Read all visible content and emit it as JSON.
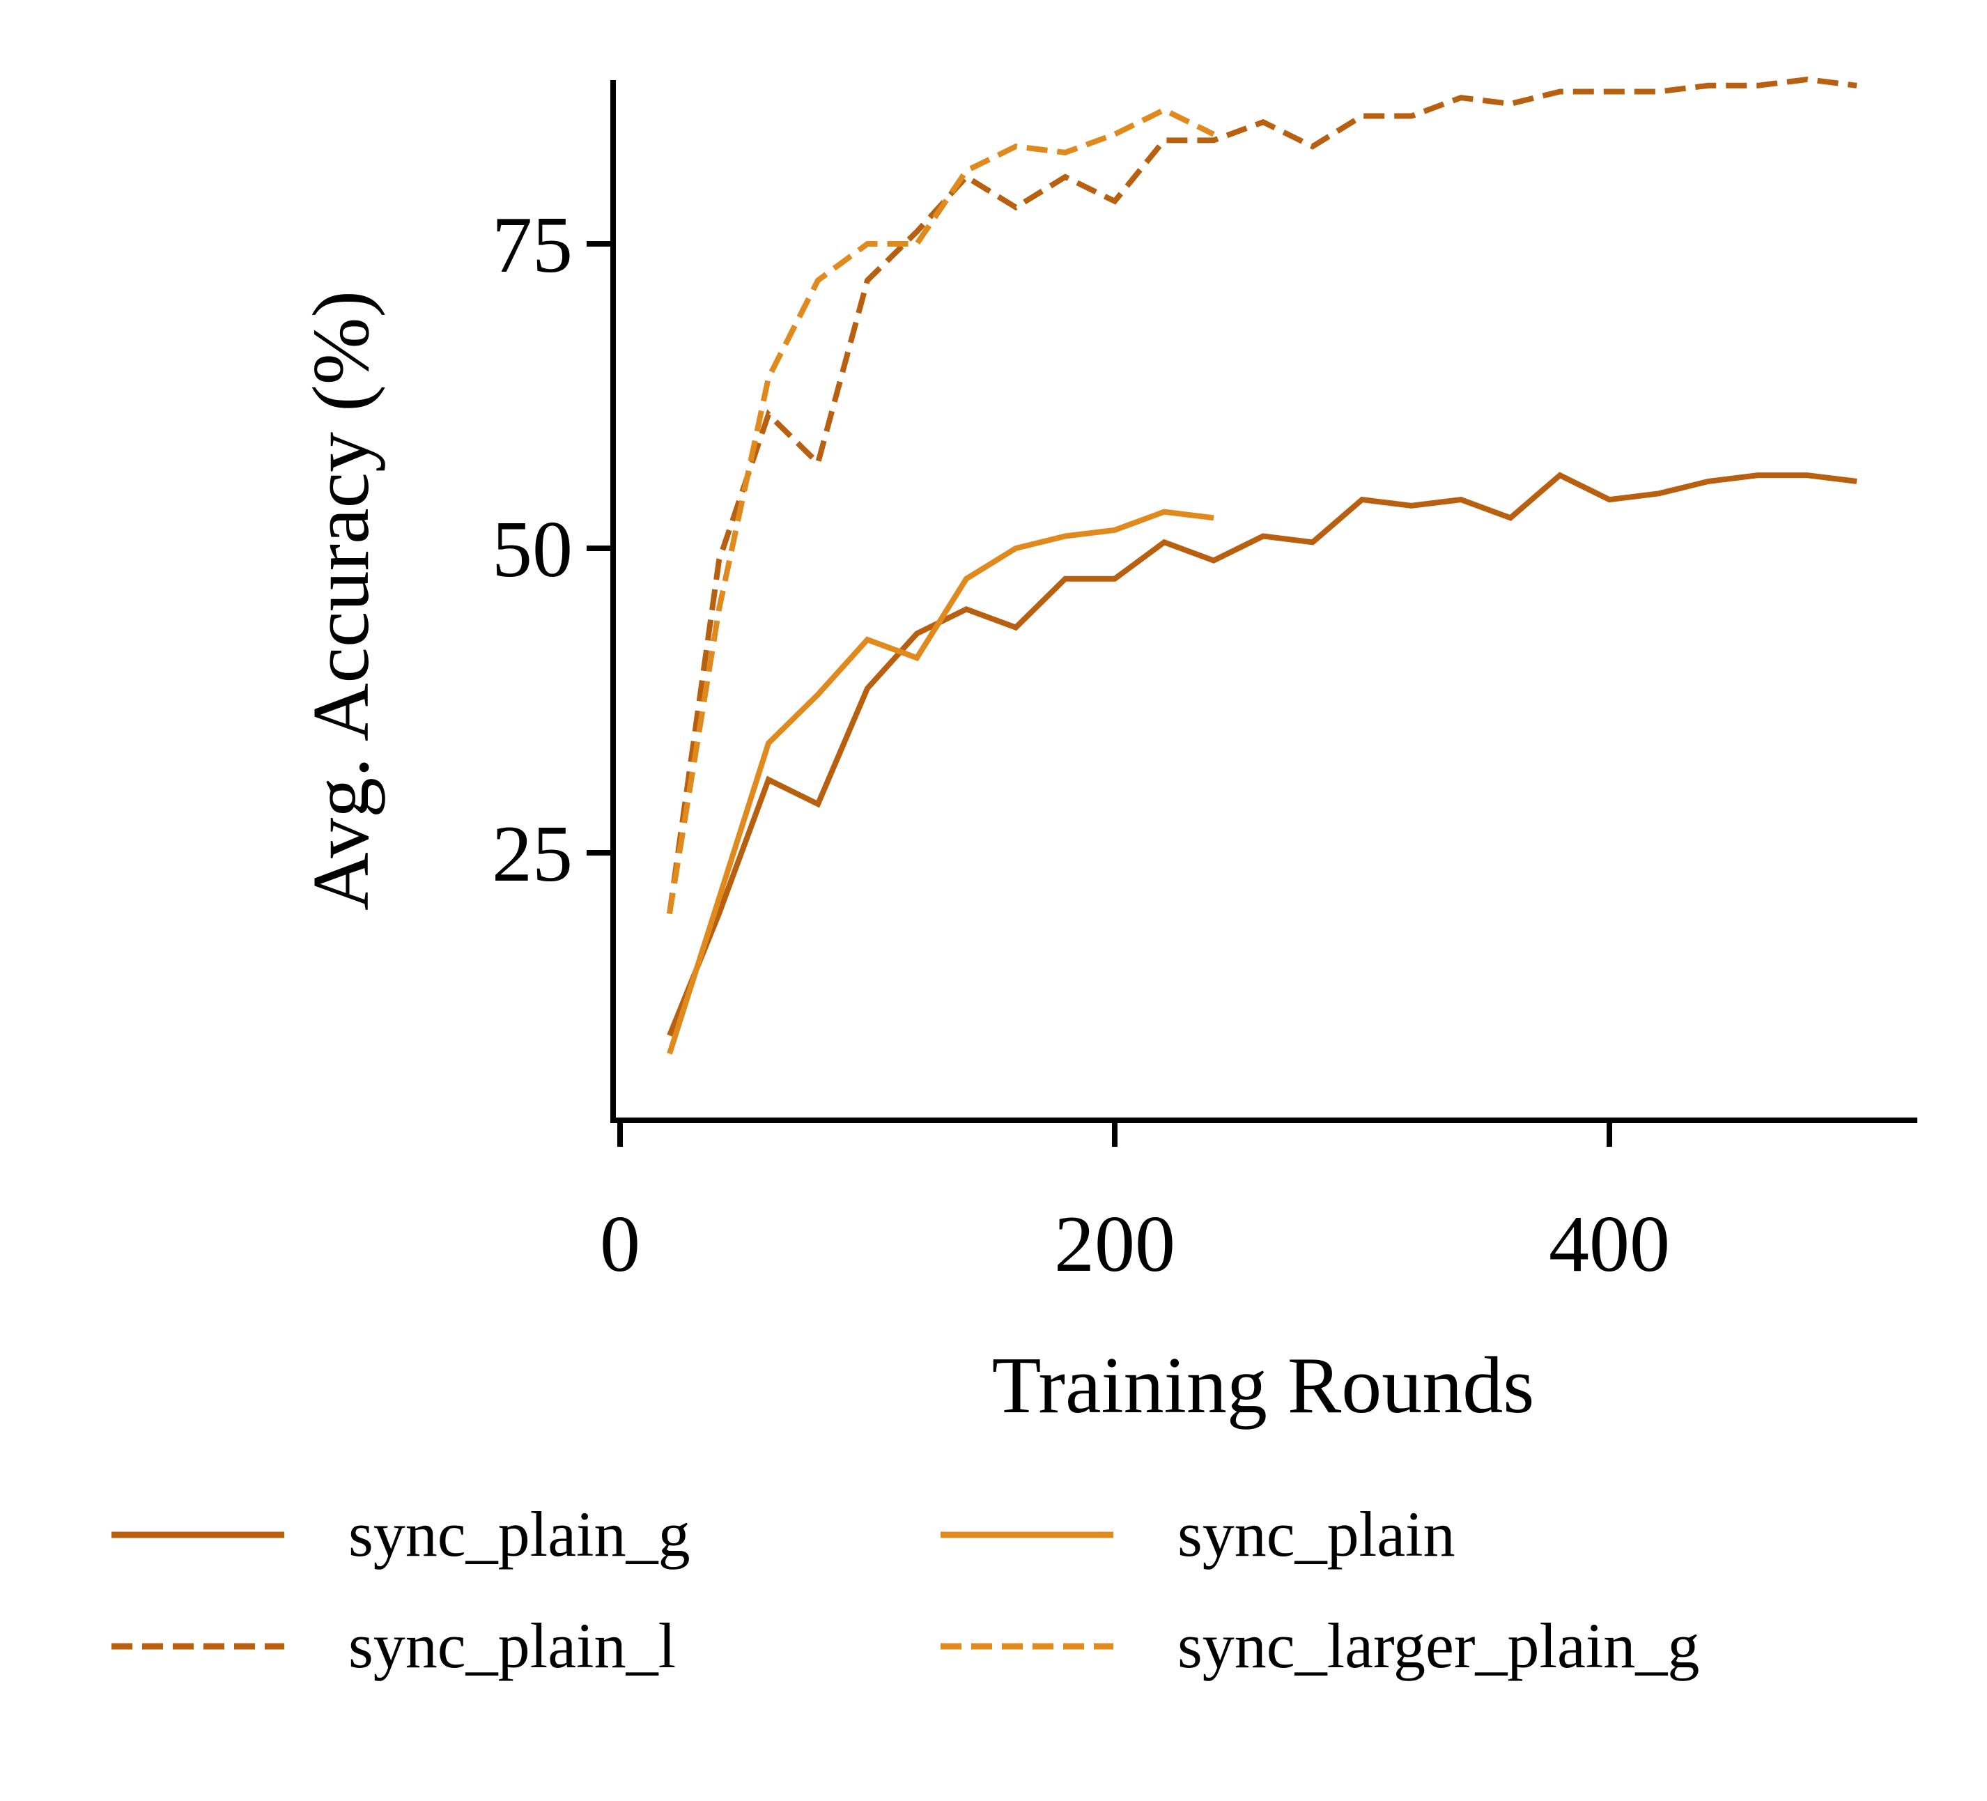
{
  "chart_data": {
    "type": "line",
    "title": "",
    "xlabel": "Training Rounds",
    "ylabel": "Avg. Accuracy (%)",
    "xlim": [
      -3,
      525
    ],
    "ylim": [
      5,
      92
    ],
    "xticks": [
      0,
      200,
      400
    ],
    "yticks": [
      25,
      50,
      75
    ],
    "grid": false,
    "legend_position": "bottom",
    "series": [
      {
        "name": "sync_plain_g",
        "color": "#B8600F",
        "style": "solid",
        "x": [
          20,
          40,
          60,
          80,
          100,
          120,
          140,
          160,
          180,
          200,
          220,
          240,
          260,
          280,
          300,
          320,
          340,
          360,
          380,
          400,
          420,
          440,
          460,
          480,
          500
        ],
        "y": [
          10,
          20,
          31,
          29,
          38.5,
          43,
          45,
          43.5,
          47.5,
          47.5,
          50.5,
          49,
          51,
          50.5,
          54,
          53.5,
          54,
          52.5,
          56,
          54,
          54.5,
          55.5,
          56,
          56,
          55.5
        ]
      },
      {
        "name": "sync_plain",
        "color": "#E08A1E",
        "style": "solid",
        "x": [
          20,
          60,
          80,
          100,
          120,
          140,
          160,
          180,
          200,
          220,
          240
        ],
        "y": [
          8.5,
          34,
          38,
          42.5,
          41,
          47.5,
          50,
          51,
          51.5,
          53,
          52.5
        ]
      },
      {
        "name": "sync_plain_l",
        "color": "#B8600F",
        "style": "dashed",
        "x": [
          20,
          40,
          60,
          80,
          100,
          120,
          140,
          160,
          180,
          200,
          220,
          240,
          260,
          280,
          300,
          320,
          340,
          360,
          380,
          400,
          420,
          440,
          460,
          480,
          500
        ],
        "y": [
          20,
          49,
          61,
          57,
          72,
          76,
          80.5,
          78,
          80.5,
          78.5,
          83.5,
          83.5,
          85,
          83,
          85.5,
          85.5,
          87,
          86.5,
          87.5,
          87.5,
          87.5,
          88,
          88,
          88.5,
          88
        ]
      },
      {
        "name": "sync_larger_plain_g",
        "color": "#E08A1E",
        "style": "dashed",
        "x": [
          20,
          40,
          60,
          80,
          100,
          120,
          140,
          160,
          180,
          200,
          220,
          240
        ],
        "y": [
          20,
          45,
          64,
          72,
          75,
          75,
          81,
          83,
          82.5,
          84,
          86,
          84
        ]
      }
    ]
  }
}
